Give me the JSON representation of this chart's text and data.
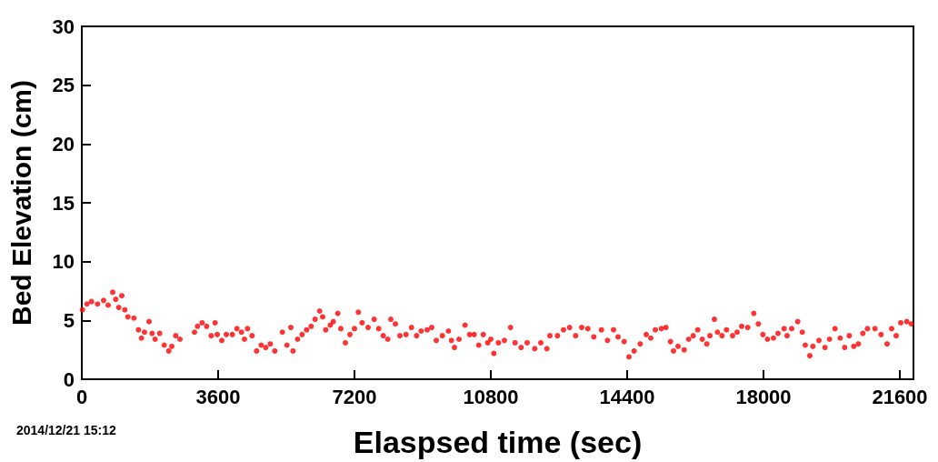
{
  "chart_data": {
    "type": "scatter",
    "xlabel": "Elaspsed time (sec)",
    "ylabel": "Bed Elevation (cm)",
    "annotations": [
      "2014/12/21 15:12"
    ],
    "xlim": [
      0,
      21960
    ],
    "xticks": [
      0,
      3600,
      7200,
      10800,
      14400,
      18000,
      21600
    ],
    "ylim": [
      0,
      30
    ],
    "yticks": [
      0,
      5,
      10,
      15,
      20,
      25,
      30
    ],
    "grid": false,
    "marker": "circle",
    "series": [
      {
        "color": "#ff0000",
        "x": [
          16,
          136,
          256,
          416,
          576,
          696,
          816,
          896,
          976,
          1056,
          1136,
          1216,
          1376,
          1496,
          1576,
          1656,
          1776,
          1856,
          1936,
          2056,
          2176,
          2296,
          2376,
          2480,
          2592,
          2976,
          3056,
          3176,
          3296,
          3416,
          3520,
          3576,
          3696,
          3816,
          3976,
          4096,
          4216,
          4296,
          4376,
          4496,
          4616,
          4736,
          4856,
          4976,
          5096,
          5296,
          5416,
          5520,
          5576,
          5696,
          5816,
          5936,
          6056,
          6160,
          6280,
          6360,
          6440,
          6560,
          6640,
          6760,
          6840,
          6960,
          7080,
          7200,
          7304,
          7400,
          7560,
          7720,
          7840,
          7960,
          8080,
          8160,
          8280,
          8400,
          8560,
          8704,
          8840,
          8960,
          9120,
          9240,
          9360,
          9520,
          9680,
          9760,
          9840,
          9960,
          10120,
          10240,
          10360,
          10480,
          10600,
          10720,
          10800,
          10880,
          11000,
          11160,
          11320,
          11440,
          11600,
          11760,
          11960,
          12120,
          12280,
          12360,
          12560,
          12720,
          12880,
          13040,
          13200,
          13360,
          13520,
          13720,
          13880,
          14040,
          14160,
          14320,
          14448,
          14584,
          14744,
          14904,
          15024,
          15144,
          15304,
          15424,
          15544,
          15624,
          15744,
          15904,
          16024,
          16144,
          16264,
          16384,
          16504,
          16584,
          16704,
          16784,
          16904,
          17024,
          17184,
          17304,
          17424,
          17584,
          17744,
          17864,
          17984,
          18104,
          18264,
          18384,
          18544,
          18624,
          18744,
          18904,
          19024,
          19104,
          19224,
          19304,
          19464,
          19624,
          19744,
          19888,
          20024,
          20144,
          20264,
          20384,
          20504,
          20624,
          20744,
          20944,
          21104,
          21264,
          21384,
          21504,
          21624,
          21784,
          21904
        ],
        "values": [
          5.9,
          6.4,
          6.6,
          6.4,
          6.7,
          6.3,
          7.4,
          6.8,
          6.1,
          7.1,
          5.9,
          5.3,
          5.2,
          4.2,
          3.5,
          4.0,
          4.9,
          3.9,
          3.4,
          3.9,
          2.9,
          2.4,
          2.8,
          3.7,
          3.4,
          4.0,
          4.5,
          4.8,
          4.5,
          3.7,
          4.8,
          3.8,
          3.3,
          3.8,
          3.8,
          4.3,
          4.0,
          3.4,
          4.3,
          3.7,
          2.4,
          2.9,
          2.7,
          3.0,
          2.4,
          4.0,
          2.9,
          4.4,
          2.4,
          3.4,
          3.8,
          4.2,
          4.5,
          5.1,
          5.8,
          5.3,
          4.2,
          4.6,
          4.9,
          5.6,
          4.3,
          3.1,
          3.8,
          4.3,
          5.7,
          4.8,
          4.4,
          5.1,
          4.3,
          3.7,
          3.4,
          5.1,
          4.7,
          3.7,
          3.8,
          4.4,
          3.7,
          4.1,
          4.2,
          4.4,
          3.3,
          3.7,
          4.1,
          3.3,
          2.7,
          3.4,
          4.6,
          3.8,
          3.8,
          2.9,
          3.8,
          3.1,
          3.4,
          2.2,
          3.1,
          3.3,
          4.4,
          3.1,
          2.7,
          3.1,
          2.6,
          3.1,
          2.6,
          3.7,
          3.7,
          4.2,
          4.4,
          3.7,
          4.4,
          4.3,
          3.6,
          4.2,
          3.3,
          4.2,
          3.6,
          3.2,
          1.9,
          2.4,
          3.0,
          3.8,
          3.5,
          4.2,
          4.3,
          4.4,
          3.2,
          2.4,
          2.8,
          2.5,
          3.4,
          3.7,
          4.2,
          3.4,
          3.0,
          3.7,
          5.1,
          4.0,
          3.7,
          4.2,
          3.7,
          4.0,
          4.5,
          4.4,
          5.6,
          4.7,
          3.8,
          3.4,
          3.5,
          3.9,
          4.3,
          3.7,
          4.3,
          4.9,
          4.0,
          2.9,
          2.0,
          2.8,
          3.3,
          2.7,
          3.4,
          4.3,
          3.5,
          2.7,
          3.7,
          2.8,
          3.0,
          3.9,
          4.3,
          4.3,
          3.8,
          3.0,
          4.3,
          3.7,
          4.8,
          4.9,
          4.7
        ]
      }
    ]
  }
}
